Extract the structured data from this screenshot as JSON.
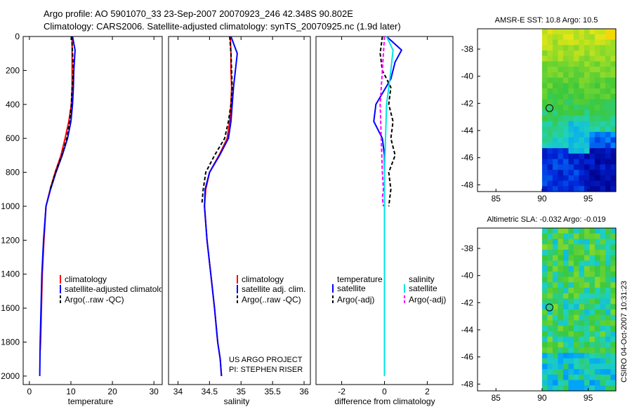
{
  "figure": {
    "title_line1": "Argo profile: AO 5901070_33 23-Sep-2007 20070923_246 42.348S 90.802E",
    "title_line2": "Climatology: CARS2006. Satellite-adjusted climatology: synTS_20070925.nc (1.9d later)",
    "project_line1": "US ARGO PROJECT",
    "project_line2": "PI: STEPHEN RISER",
    "stamp": "CSIRO 04-Oct-2007 10:31:23"
  },
  "colors": {
    "climatology": "#ff0000",
    "satellite": "#0000ff",
    "argo": "#000000",
    "sal_satellite": "#00e5e5",
    "sal_argo": "#ff00ff"
  },
  "chart_data": [
    {
      "type": "line",
      "id": "temperature",
      "xlabel": "temperature",
      "ylabel": "",
      "xlim": [
        -1.5,
        32
      ],
      "ylim": [
        2050,
        0
      ],
      "xticks": [
        "0",
        "10",
        "20",
        "30"
      ],
      "yticks": [
        "0",
        "200",
        "400",
        "600",
        "800",
        "1000",
        "1200",
        "1400",
        "1600",
        "1800",
        "2000"
      ],
      "legend": [
        {
          "label": "climatology",
          "color": "#ff0000"
        },
        {
          "label": "satellite-adjusted climatology",
          "color": "#0000ff"
        },
        {
          "label": "Argo(..raw -QC)",
          "color": "#000000"
        }
      ],
      "series": [
        {
          "name": "climatology",
          "color": "#ff0000",
          "dash": "",
          "x": [
            10.3,
            10.3,
            10.3,
            10.3,
            10.1,
            9.5,
            8.6,
            7.6,
            6.2,
            5.0,
            4.0,
            3.5,
            3.1,
            2.9,
            2.8,
            2.7,
            2.6
          ],
          "y": [
            0,
            100,
            200,
            300,
            400,
            500,
            600,
            700,
            800,
            900,
            1000,
            1200,
            1400,
            1600,
            1700,
            1800,
            1850
          ]
        },
        {
          "name": "satellite-adjusted climatology",
          "color": "#0000ff",
          "dash": "",
          "x": [
            10.4,
            11.0,
            10.7,
            10.6,
            10.4,
            10.0,
            9.2,
            7.9,
            6.4,
            5.1,
            4.0,
            3.4,
            3.0,
            2.8,
            2.6,
            2.5
          ],
          "y": [
            0,
            80,
            200,
            300,
            400,
            500,
            600,
            700,
            800,
            900,
            1000,
            1200,
            1400,
            1600,
            1800,
            2000
          ]
        },
        {
          "name": "Argo(..raw -QC)",
          "color": "#000000",
          "dash": "5,3",
          "x": [
            10.2,
            10.4,
            10.6,
            10.3,
            10.1,
            9.7,
            9.0,
            7.8,
            6.3,
            5.0
          ],
          "y": [
            0,
            100,
            200,
            300,
            400,
            500,
            600,
            700,
            800,
            900
          ]
        }
      ]
    },
    {
      "type": "line",
      "id": "salinity",
      "xlabel": "salinity",
      "ylabel": "",
      "xlim": [
        33.85,
        36.1
      ],
      "ylim": [
        2050,
        0
      ],
      "xticks": [
        "34",
        "34.5",
        "35",
        "35.5",
        "36"
      ],
      "legend": [
        {
          "label": "climatology",
          "color": "#ff0000"
        },
        {
          "label": "satellite adj. clim.",
          "color": "#0000ff"
        },
        {
          "label": "Argo(..raw -QC)",
          "color": "#000000"
        }
      ],
      "series": [
        {
          "name": "climatology",
          "color": "#ff0000",
          "dash": "",
          "x": [
            34.83,
            34.84,
            34.84,
            34.85,
            34.84,
            34.82,
            34.78,
            34.65,
            34.5,
            34.44,
            34.42,
            34.46,
            34.52,
            34.58,
            34.63,
            34.67,
            34.69
          ],
          "y": [
            0,
            100,
            200,
            300,
            400,
            500,
            600,
            700,
            800,
            900,
            1000,
            1200,
            1400,
            1600,
            1800,
            1900,
            2000
          ]
        },
        {
          "name": "satellite adj. clim.",
          "color": "#0000ff",
          "dash": "",
          "x": [
            34.84,
            34.94,
            34.91,
            34.88,
            34.86,
            34.84,
            34.8,
            34.66,
            34.5,
            34.43,
            34.42,
            34.46,
            34.52,
            34.58,
            34.63,
            34.67,
            34.69
          ],
          "y": [
            0,
            100,
            200,
            300,
            400,
            500,
            600,
            700,
            800,
            900,
            1000,
            1200,
            1400,
            1600,
            1800,
            1900,
            2000
          ]
        },
        {
          "name": "Argo(..raw -QC)",
          "color": "#000000",
          "dash": "5,3",
          "x": [
            34.82,
            34.84,
            34.85,
            34.86,
            34.84,
            34.8,
            34.74,
            34.58,
            34.44,
            34.4,
            34.38
          ],
          "y": [
            0,
            100,
            200,
            300,
            400,
            500,
            600,
            700,
            800,
            900,
            980
          ]
        }
      ]
    },
    {
      "type": "line",
      "id": "difference",
      "xlabel": "difference from climatology",
      "ylabel": "",
      "xlim": [
        -3.2,
        3.2
      ],
      "ylim": [
        2050,
        0
      ],
      "xticks": [
        "-2",
        "0",
        "2"
      ],
      "legend_headers": [
        "temperature",
        "salinity"
      ],
      "legend": [
        {
          "label": "satellite",
          "color": "#0000ff"
        },
        {
          "label": "Argo(-adj)",
          "color": "#000000"
        },
        {
          "label": "satellite",
          "color": "#00e5e5"
        },
        {
          "label": "Argo(-adj)",
          "color": "#ff00ff"
        }
      ],
      "series": [
        {
          "name": "temperature satellite",
          "color": "#0000ff",
          "dash": "",
          "x": [
            0.1,
            0.8,
            0.5,
            0.3,
            -0.4,
            -0.5,
            -0.1,
            0.0,
            0.0,
            0.0,
            0.0,
            0.0
          ],
          "y": [
            0,
            80,
            150,
            250,
            400,
            500,
            600,
            700,
            900,
            1200,
            1600,
            2000
          ]
        },
        {
          "name": "temperature Argo(-adj)",
          "color": "#000000",
          "dash": "5,3",
          "x": [
            -0.1,
            -0.2,
            -0.1,
            0.3,
            0.2,
            0.4,
            0.3,
            0.5,
            0.2,
            0.3,
            0.2
          ],
          "y": [
            0,
            100,
            200,
            300,
            400,
            500,
            600,
            700,
            800,
            900,
            1000
          ]
        },
        {
          "name": "salinity satellite",
          "color": "#00e5e5",
          "dash": "",
          "x": [
            0.1,
            0.4,
            0.3,
            0.2,
            0.1,
            0.05,
            0.0,
            0.0,
            0.0,
            0.0
          ],
          "y": [
            0,
            80,
            200,
            300,
            400,
            600,
            800,
            1200,
            1600,
            2000
          ]
        },
        {
          "name": "salinity Argo(-adj)",
          "color": "#ff00ff",
          "dash": "5,3",
          "x": [
            0.0,
            -0.05,
            -0.1,
            -0.2,
            -0.15,
            -0.1,
            -0.05,
            -0.1,
            -0.05
          ],
          "y": [
            0,
            100,
            200,
            400,
            600,
            800,
            900,
            950,
            1000
          ]
        }
      ]
    },
    {
      "type": "heatmap",
      "id": "sst_map",
      "title": "AMSR-E SST: 10.8 Argo: 10.5",
      "xlim": [
        83,
        98
      ],
      "ylim": [
        -48.5,
        -36.5
      ],
      "xticks": [
        "85",
        "90",
        "95"
      ],
      "yticks": [
        "-38",
        "-40",
        "-42",
        "-44",
        "-46",
        "-48"
      ],
      "marker": {
        "lon": 90.8,
        "lat": -42.35
      }
    },
    {
      "type": "heatmap",
      "id": "sla_map",
      "title": "Altimetric SLA: -0.032 Argo: -0.019",
      "xlim": [
        83,
        98
      ],
      "ylim": [
        -48.5,
        -36.5
      ],
      "xticks": [
        "85",
        "90",
        "95"
      ],
      "yticks": [
        "-38",
        "-40",
        "-42",
        "-44",
        "-46",
        "-48"
      ],
      "marker": {
        "lon": 90.8,
        "lat": -42.35
      }
    }
  ]
}
